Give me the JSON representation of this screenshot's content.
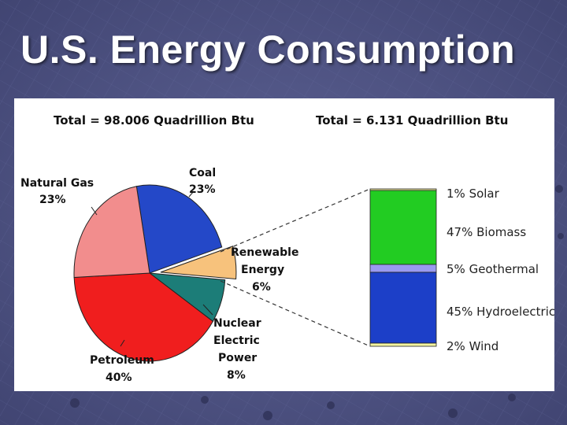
{
  "slide": {
    "title": "U.S. Energy Consumption"
  },
  "colors": {
    "background": "#4a4e7e",
    "coal": "#2448c8",
    "renewable": "#f7c27c",
    "nuclear": "#1c7d78",
    "petroleum": "#f01e1e",
    "natural_gas": "#f28d8d",
    "solar": "#f4f4a0",
    "biomass": "#22cc22",
    "geothermal": "#9a9af0",
    "hydroelectric": "#1c3fc8",
    "wind": "#f4f4a0"
  },
  "chart_data": [
    {
      "type": "pie",
      "title": "Total = 98.006 Quadrillion Btu",
      "slices": [
        {
          "name": "Coal",
          "value": 23,
          "label_line1": "Coal",
          "label_line2": "23%"
        },
        {
          "name": "Renewable Energy",
          "value": 6,
          "label_line1": "Renewable",
          "label_line2": "Energy",
          "label_line3": "6%"
        },
        {
          "name": "Nuclear Electric Power",
          "value": 8,
          "label_line1": "Nuclear",
          "label_line2": "Electric",
          "label_line3": "Power",
          "label_line4": "8%"
        },
        {
          "name": "Petroleum",
          "value": 40,
          "label_line1": "Petroleum",
          "label_line2": "40%"
        },
        {
          "name": "Natural Gas",
          "value": 23,
          "label_line1": "Natural Gas",
          "label_line2": "23%"
        }
      ]
    },
    {
      "type": "bar",
      "subtype": "stacked-100",
      "title": "Total = 6.131 Quadrillion Btu",
      "segments": [
        {
          "name": "Solar",
          "value": 1,
          "label": "1% Solar"
        },
        {
          "name": "Biomass",
          "value": 47,
          "label": "47% Biomass"
        },
        {
          "name": "Geothermal",
          "value": 5,
          "label": "5% Geothermal"
        },
        {
          "name": "Hydroelectric",
          "value": 45,
          "label": "45% Hydroelectric"
        },
        {
          "name": "Wind",
          "value": 2,
          "label": "2% Wind"
        }
      ]
    }
  ]
}
